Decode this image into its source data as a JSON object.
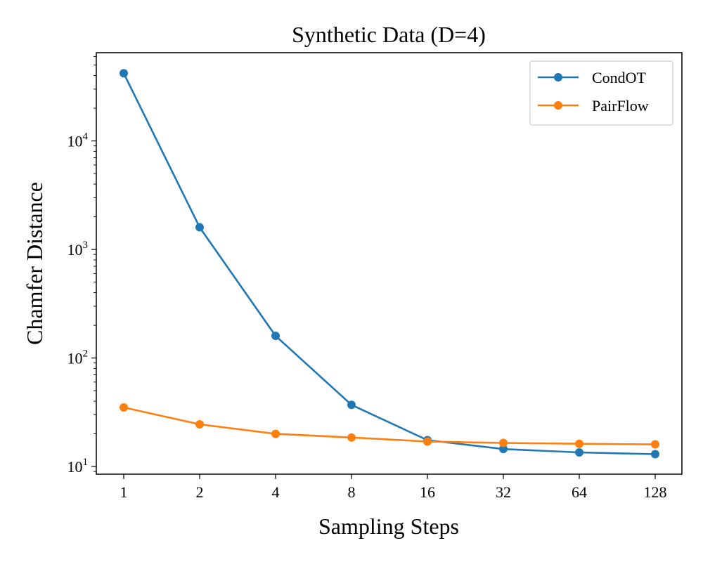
{
  "chart_data": {
    "type": "line",
    "title": "Synthetic Data (D=4)",
    "xlabel": "Sampling Steps",
    "ylabel": "Chamfer Distance",
    "x": [
      "1",
      "2",
      "4",
      "8",
      "16",
      "32",
      "64",
      "128"
    ],
    "yscale": "log",
    "ylim": [
      8.5,
      65000
    ],
    "y_ticks": [
      10,
      100,
      1000,
      10000
    ],
    "y_tick_labels": [
      {
        "base": "10",
        "exp": "1"
      },
      {
        "base": "10",
        "exp": "2"
      },
      {
        "base": "10",
        "exp": "3"
      },
      {
        "base": "10",
        "exp": "4"
      }
    ],
    "grid": false,
    "legend_position": "top-right",
    "series": [
      {
        "name": "CondOT",
        "color": "#1f77b4",
        "values": [
          42000,
          1600,
          160,
          37,
          17.5,
          14.5,
          13.5,
          13
        ]
      },
      {
        "name": "PairFlow",
        "color": "#ff7f0e",
        "values": [
          35,
          24.5,
          20,
          18.5,
          17,
          16.5,
          16.2,
          16
        ]
      }
    ]
  }
}
